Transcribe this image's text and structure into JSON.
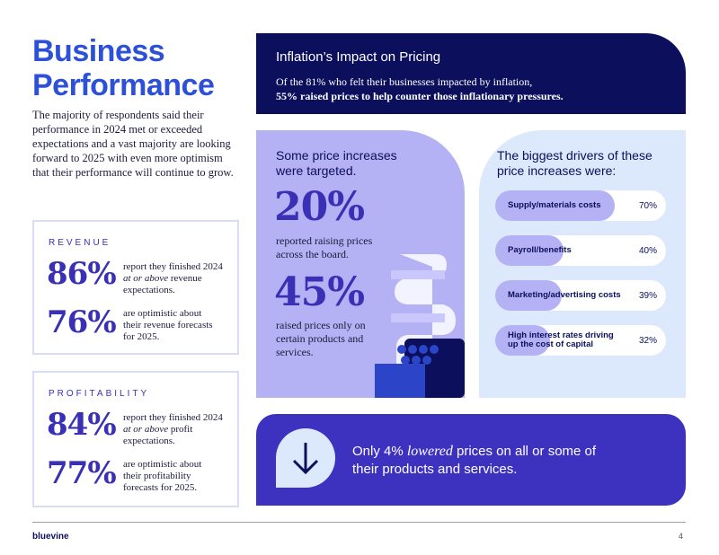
{
  "header": {
    "title": "Business Performance",
    "intro": "The majority of respondents said their performance in 2024 met or exceeded expectations and a vast majority are looking forward to 2025 with even more optimism that their performance will continue to grow."
  },
  "revenue": {
    "label": "REVENUE",
    "stats": [
      {
        "value": "86%",
        "text": [
          "report they finished 2024 ",
          "at or above",
          " revenue expectations."
        ]
      },
      {
        "value": "76%",
        "text": [
          "are optimistic about their revenue forecasts for 2025."
        ]
      }
    ]
  },
  "profitability": {
    "label": "PROFITABILITY",
    "stats": [
      {
        "value": "84%",
        "text": [
          "report they finished 2024 ",
          "at or above",
          " profit expectations."
        ]
      },
      {
        "value": "77%",
        "text": [
          "are optimistic about their profitability forecasts for 2025."
        ]
      }
    ]
  },
  "inflation": {
    "title": "Inflation’s Impact on Pricing",
    "subtitle": "Of the 81% who felt their businesses impacted by inflation,",
    "highlight": "55% raised prices to help counter those inflationary pressures."
  },
  "targeted": {
    "title": "Some price increases were targeted.",
    "stats": [
      {
        "value": "20%",
        "text": "reported raising prices across the board."
      },
      {
        "value": "45%",
        "text": "raised prices only on certain products and services."
      }
    ]
  },
  "drivers": {
    "title": "The biggest drivers of these price increases were:",
    "items": [
      {
        "label": "Supply/materials costs",
        "value": 70,
        "value_label": "70%"
      },
      {
        "label": "Payroll/benefits",
        "value": 40,
        "value_label": "40%"
      },
      {
        "label": "Marketing/advertising costs",
        "value": 39,
        "value_label": "39%"
      },
      {
        "label": "High interest rates driving up the cost of capital",
        "value": 32,
        "value_label": "32%"
      }
    ]
  },
  "lowered": {
    "text": [
      "Only 4% ",
      "lowered",
      " prices on all or some of their products and services."
    ]
  },
  "footer": {
    "brand": "bluevine",
    "page": "4"
  }
}
